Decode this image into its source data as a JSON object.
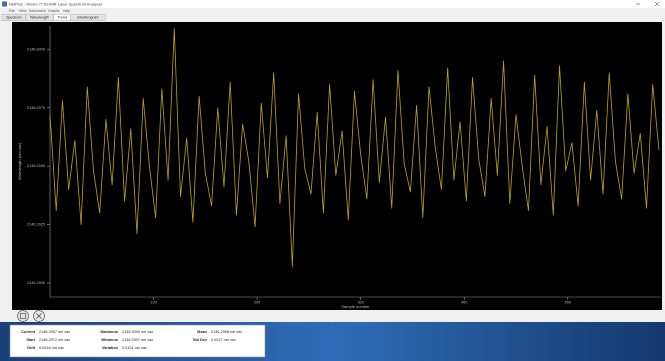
{
  "window": {
    "title": "NetPlus - Model 771B-MIR Laser Spectrum Analyzer",
    "menu": [
      "File",
      "View",
      "Instrument",
      "Graphs",
      "Help"
    ],
    "tabs": [
      "Spectrum",
      "Wavelength",
      "Trend",
      "Interferogram"
    ]
  },
  "chart_data": {
    "type": "line",
    "x_label": "Sample number",
    "y_label": "Wavelength (nm vac)",
    "color": "#b8a41c",
    "x": [
      0,
      6,
      12,
      18,
      24,
      30,
      36,
      42,
      48,
      54,
      60,
      66,
      72,
      78,
      84,
      90,
      96,
      102,
      108,
      114,
      120,
      126,
      132,
      138,
      144,
      150,
      156,
      162,
      168,
      174,
      180,
      186,
      192,
      198,
      204,
      210,
      216,
      222,
      228,
      234,
      240,
      246,
      252,
      258,
      264,
      270,
      276,
      282,
      288,
      294,
      300,
      306,
      312,
      318,
      324,
      330,
      336,
      342,
      348,
      354,
      360,
      366,
      372,
      378,
      384,
      390,
      396,
      402,
      408,
      414,
      420,
      426,
      432,
      438,
      444,
      450,
      456,
      462,
      468,
      474,
      480,
      486,
      492,
      498,
      504,
      510,
      516,
      522,
      528,
      534,
      540,
      546,
      552,
      558,
      564,
      570,
      576,
      582,
      588
    ],
    "values": [
      2146.2972,
      2146.2931,
      2146.2978,
      2146.294,
      2146.2961,
      2146.2925,
      2146.2984,
      2146.2948,
      2146.293,
      2146.297,
      2146.2942,
      2146.2988,
      2146.2935,
      2146.2966,
      2146.2921,
      2146.2979,
      2146.295,
      2146.2928,
      2146.2983,
      2146.2944,
      2146.3009,
      2146.2937,
      2146.2962,
      2146.2926,
      2146.298,
      2146.2947,
      2146.2933,
      2146.2975,
      2146.2941,
      2146.2986,
      2146.2929,
      2146.2968,
      2146.2952,
      2146.2924,
      2146.2977,
      2146.2945,
      2146.299,
      2146.2934,
      2146.2963,
      2146.2907,
      2146.2981,
      2146.2949,
      2146.2938,
      2146.2973,
      2146.293,
      2146.2985,
      2146.2946,
      2146.2965,
      2146.2927,
      2146.2982,
      2146.2955,
      2146.2936,
      2146.2987,
      2146.2943,
      2146.2971,
      2146.2932,
      2146.2991,
      2146.2951,
      2146.2939,
      2146.2976,
      2146.2928,
      2146.2984,
      2146.2958,
      2146.294,
      2146.2992,
      2146.2944,
      2146.2969,
      2146.2935,
      2146.2988,
      2146.2953,
      2146.2937,
      2146.2979,
      2146.2946,
      2146.2995,
      2146.2934,
      2146.2972,
      2146.295,
      2146.2931,
      2146.2989,
      2146.2942,
      2146.2967,
      2146.2929,
      2146.2993,
      2146.2948,
      2146.296,
      2146.2933,
      2146.2986,
      2146.2944,
      2146.2974,
      2146.2938,
      2146.299,
      2146.2952,
      2146.2936,
      2146.2981,
      2146.2947,
      2146.2964,
      2146.2932,
      2146.2985,
      2146.2957
    ],
    "xlim": [
      0,
      590
    ],
    "xticks": [
      100,
      200,
      300,
      400,
      500
    ],
    "ylim": [
      2146.2894,
      2146.301
    ],
    "yticks": [
      {
        "value": 2146.29,
        "label": "2146.2900"
      },
      {
        "value": 2146.2925,
        "label": "2146.2925"
      },
      {
        "value": 2146.295,
        "label": "2146.2950"
      },
      {
        "value": 2146.2975,
        "label": "2146.2975"
      },
      {
        "value": 2146.3,
        "label": "2146.3000"
      }
    ]
  },
  "stats": [
    [
      {
        "label": "Current",
        "value": "2146.2957 nm vac"
      },
      {
        "label": "Start",
        "value": "2146.2972 nm vac"
      },
      {
        "label": "Drift",
        "value": "0.0016 nm vac"
      }
    ],
    [
      {
        "label": "Maximum",
        "value": "2146.3009 nm vac"
      },
      {
        "label": "Minimum",
        "value": "2146.2907 nm vac"
      },
      {
        "label": "Variation",
        "value": "0.0101 nm vac"
      }
    ],
    [
      {
        "label": "Mean",
        "value": "2146.2956 nm vac"
      },
      {
        "label": "Std Dev",
        "value": "0.0027 nm vac"
      }
    ]
  ]
}
